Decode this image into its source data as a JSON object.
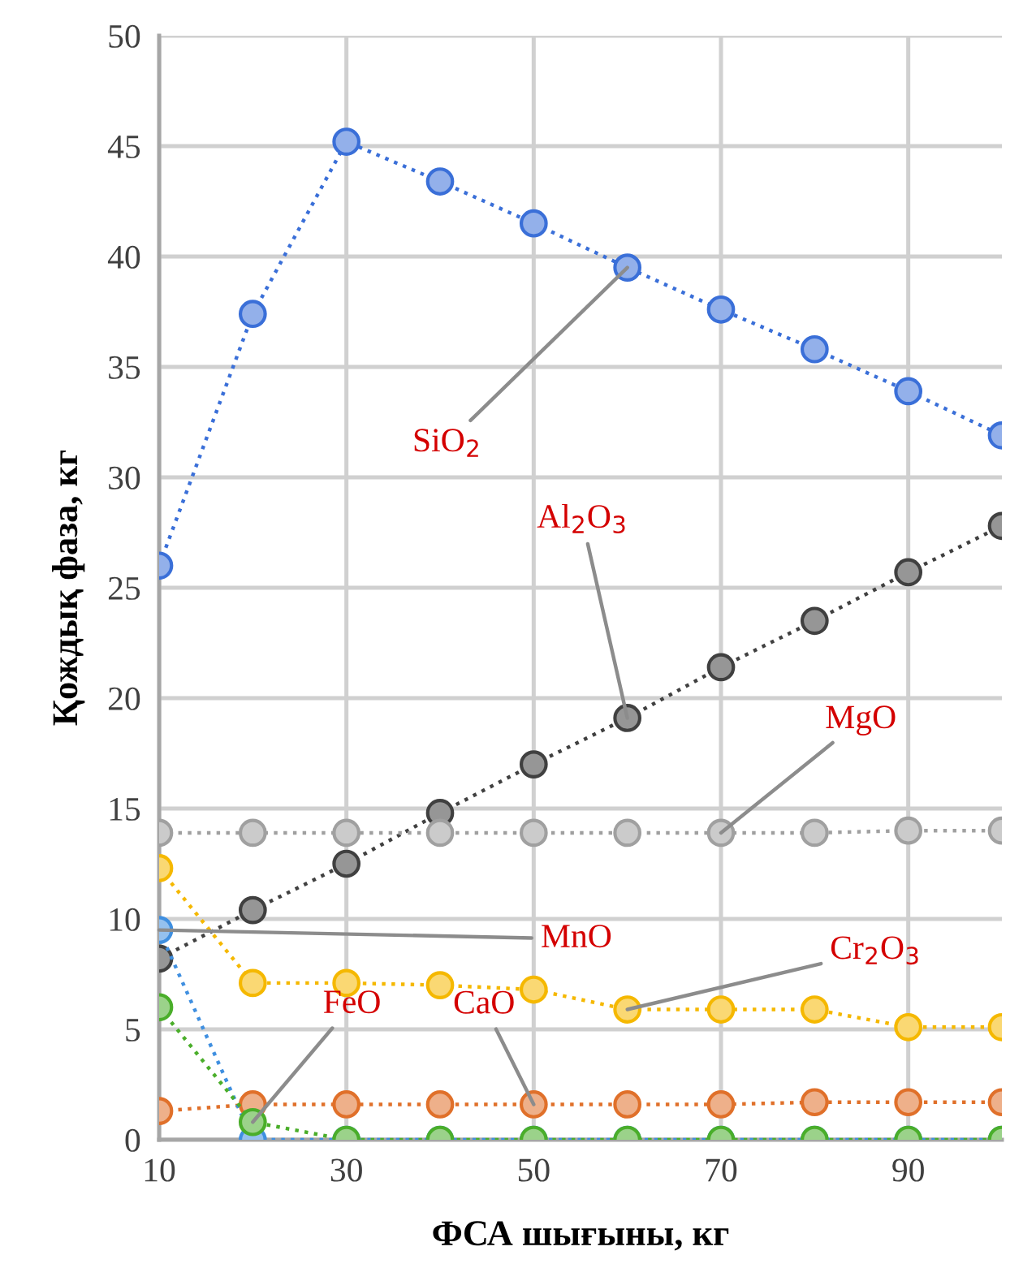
{
  "chart_data": {
    "type": "line",
    "xlabel": "ФСА шығыны, кг",
    "ylabel": "Қождық фаза, кг",
    "x": [
      10,
      20,
      30,
      40,
      50,
      60,
      70,
      80,
      90,
      100
    ],
    "xlim": [
      10,
      100
    ],
    "xticks": [
      10,
      30,
      50,
      70,
      90
    ],
    "ylim": [
      0,
      50
    ],
    "yticks": [
      0,
      5,
      10,
      15,
      20,
      25,
      30,
      35,
      40,
      45,
      50
    ],
    "grid": true,
    "marker": "circle",
    "line_style": "dotted",
    "legend": false,
    "series": [
      {
        "name": "SiO$_{2}$",
        "color": "#3a6fd8",
        "values": [
          26.0,
          37.4,
          45.2,
          43.4,
          41.5,
          39.5,
          37.6,
          35.8,
          33.9,
          31.9
        ]
      },
      {
        "name": "Al$_{2}$O$_{3}$",
        "color": "#404040",
        "values": [
          8.2,
          10.4,
          12.5,
          14.8,
          17.0,
          19.1,
          21.4,
          23.5,
          25.7,
          27.8
        ]
      },
      {
        "name": "MgO",
        "color": "#a0a0a0",
        "values": [
          13.9,
          13.9,
          13.9,
          13.9,
          13.9,
          13.9,
          13.9,
          13.9,
          14.0,
          14.0
        ]
      },
      {
        "name": "Cr$_{2}$O$_{3}$",
        "color": "#f5b800",
        "values": [
          12.3,
          7.1,
          7.1,
          7.0,
          6.8,
          5.9,
          5.9,
          5.9,
          5.1,
          5.1
        ]
      },
      {
        "name": "CaO",
        "color": "#e0702a",
        "values": [
          1.3,
          1.6,
          1.6,
          1.6,
          1.6,
          1.6,
          1.6,
          1.7,
          1.7,
          1.7
        ]
      },
      {
        "name": "MnO",
        "color": "#3f8fe0",
        "values": [
          9.5,
          0,
          0,
          0,
          0,
          0,
          0,
          0,
          0,
          0
        ]
      },
      {
        "name": "FeO",
        "color": "#4aae2a",
        "values": [
          6.0,
          0.8,
          0,
          0,
          0,
          0,
          0,
          0,
          0,
          0
        ]
      }
    ]
  }
}
